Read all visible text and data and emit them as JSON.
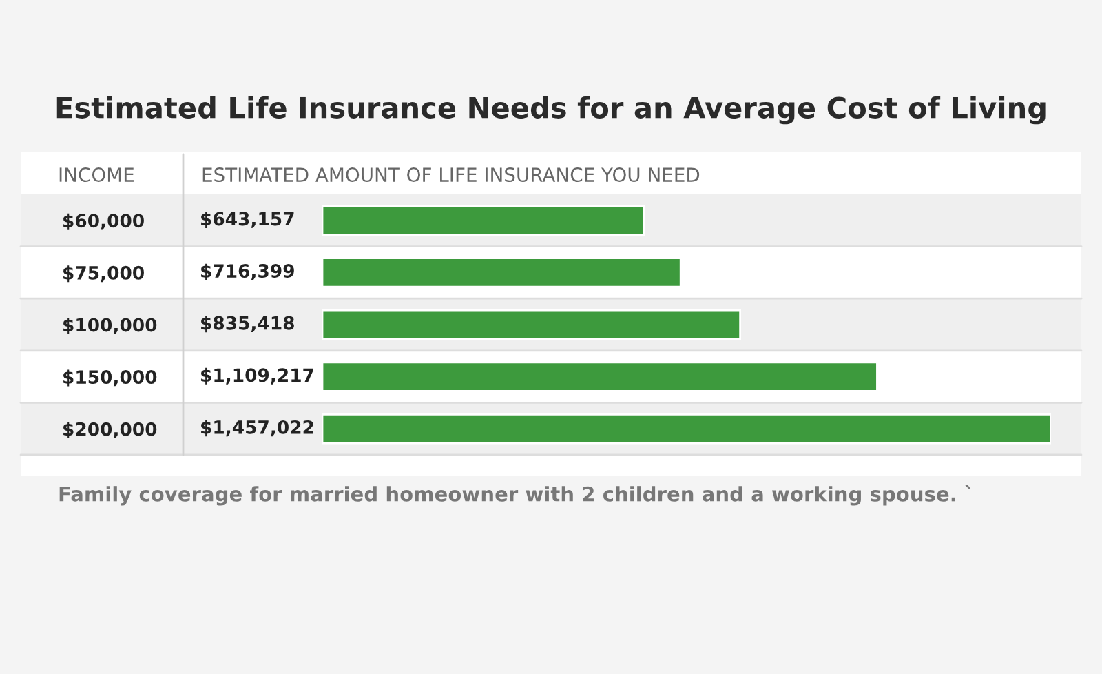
{
  "chart_data": {
    "type": "bar",
    "orientation": "horizontal",
    "title": "Estimated Life Insurance Needs for an Average Cost of Living",
    "ylabel": "INCOME",
    "xlabel": "ESTIMATED AMOUNT OF LIFE INSURANCE YOU NEED",
    "categories": [
      "$60,000",
      "$75,000",
      "$100,000",
      "$150,000",
      "$200,000"
    ],
    "values": [
      643157,
      716399,
      835418,
      1109217,
      1457022
    ],
    "value_labels": [
      "$643,157",
      "$716,399",
      "$835,418",
      "$1,109,217",
      "$1,457,022"
    ],
    "color": "#3d9a3d",
    "annotations": [
      "Family coverage for married homeowner with 2 children and a working spouse. `"
    ]
  }
}
